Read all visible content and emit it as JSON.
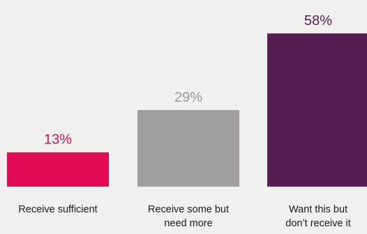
{
  "chart_data": {
    "type": "bar",
    "title": "",
    "xlabel": "",
    "ylabel": "",
    "ylim": [
      0,
      58
    ],
    "grid": false,
    "legend": "none",
    "categories": [
      [
        "Receive sufficient"
      ],
      [
        "Receive some but",
        "need more"
      ],
      [
        "Want this but",
        "don’t receive it"
      ]
    ],
    "values": [
      13,
      29,
      58
    ],
    "value_labels": [
      "13%",
      "29%",
      "58%"
    ],
    "colors": [
      "#e30a55",
      "#a09f9d",
      "#561e50"
    ],
    "value_label_colors": [
      "#e30a55",
      "#9a9997",
      "#561e50"
    ]
  }
}
